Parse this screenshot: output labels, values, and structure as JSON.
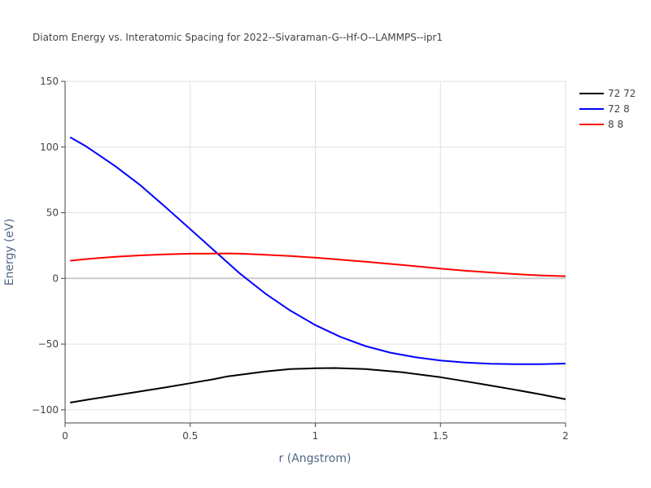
{
  "chart_data": {
    "type": "line",
    "title": "Diatom Energy vs. Interatomic Spacing for 2022--Sivaraman-G--Hf-O--LAMMPS--ipr1",
    "xlabel": "r (Angstrom)",
    "ylabel": "Energy (eV)",
    "xlim": [
      0,
      2
    ],
    "ylim": [
      -110,
      150
    ],
    "xticks": [
      0,
      0.5,
      1,
      1.5,
      2
    ],
    "xtick_labels": [
      "0",
      "0.5",
      "1",
      "1.5",
      "2"
    ],
    "yticks": [
      -100,
      -50,
      0,
      50,
      100,
      150
    ],
    "ytick_labels": [
      "−100",
      "−50",
      "0",
      "50",
      "100",
      "150"
    ],
    "grid": true,
    "legend_position": "top-right",
    "series": [
      {
        "name": "72 72",
        "color": "#000000",
        "x": [
          0.02,
          0.1,
          0.2,
          0.3,
          0.4,
          0.5,
          0.6,
          0.65,
          0.7,
          0.8,
          0.9,
          1.0,
          1.08,
          1.2,
          1.35,
          1.5,
          1.6,
          1.7,
          1.8,
          1.9,
          2.0
        ],
        "y": [
          -94.5,
          -92,
          -89,
          -86,
          -83,
          -79.8,
          -76.5,
          -74.5,
          -73.3,
          -70.8,
          -69,
          -68.4,
          -68.2,
          -69,
          -71.5,
          -75.2,
          -78.3,
          -81.5,
          -84.8,
          -88.3,
          -92
        ]
      },
      {
        "name": "72 8",
        "color": "#0000ff",
        "x": [
          0.02,
          0.08,
          0.15,
          0.2,
          0.3,
          0.4,
          0.5,
          0.6,
          0.7,
          0.8,
          0.9,
          1.0,
          1.1,
          1.2,
          1.3,
          1.4,
          1.5,
          1.6,
          1.7,
          1.8,
          1.9,
          2.0
        ],
        "y": [
          107.5,
          101,
          92,
          85.5,
          71,
          54.5,
          37.5,
          20.5,
          3.5,
          -11.5,
          -24.5,
          -35.5,
          -44.5,
          -51.5,
          -56.5,
          -60,
          -62.5,
          -64,
          -65,
          -65.3,
          -65.3,
          -64.8
        ]
      },
      {
        "name": "8 8",
        "color": "#ff0000",
        "x": [
          0.02,
          0.1,
          0.2,
          0.3,
          0.4,
          0.5,
          0.6,
          0.65,
          0.7,
          0.8,
          0.9,
          1.0,
          1.1,
          1.2,
          1.3,
          1.4,
          1.5,
          1.6,
          1.7,
          1.8,
          1.9,
          2.0
        ],
        "y": [
          13.5,
          15,
          16.5,
          17.5,
          18.3,
          18.8,
          18.9,
          19,
          18.8,
          18,
          17,
          15.8,
          14.3,
          12.7,
          11,
          9.3,
          7.5,
          5.8,
          4.5,
          3.3,
          2.3,
          1.7
        ]
      }
    ]
  }
}
